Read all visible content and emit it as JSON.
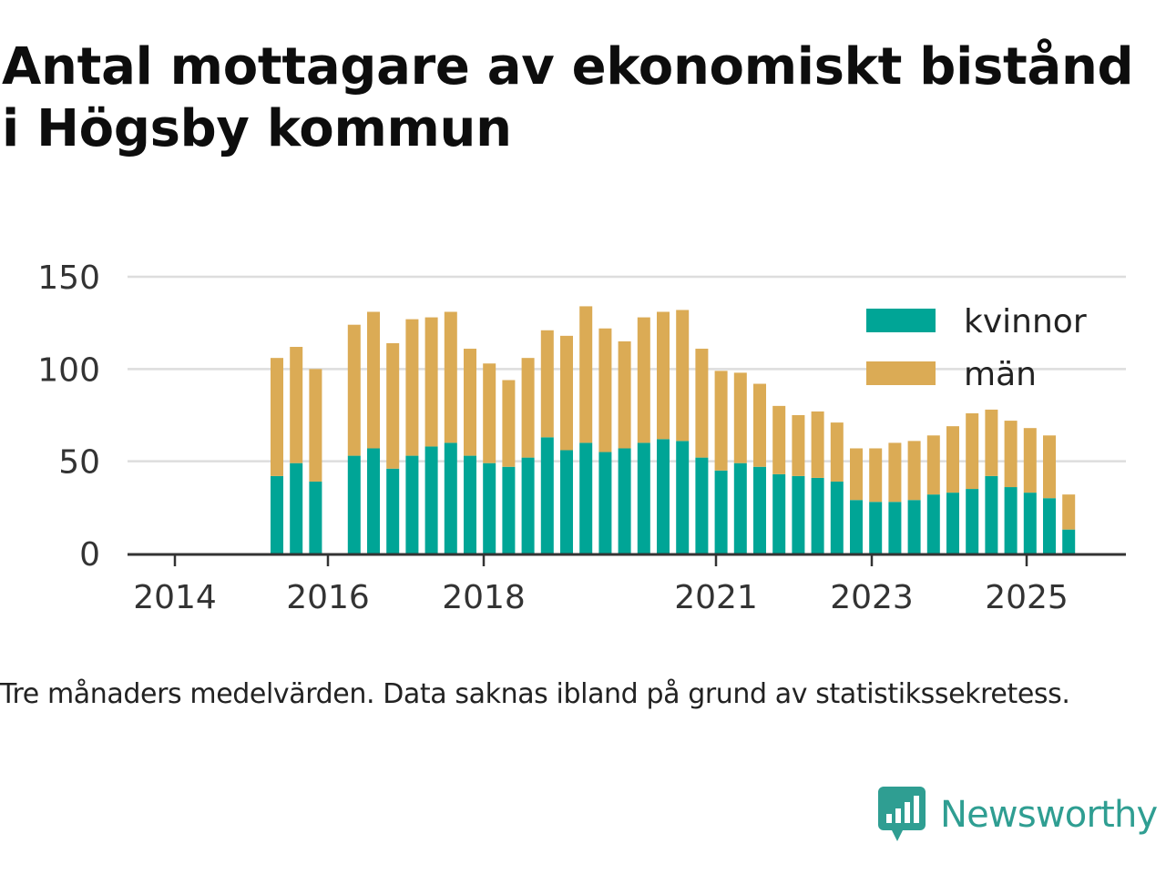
{
  "title": "Antal mottagare av ekonomiskt bistånd i Högsby kommun",
  "caption": "Tre månaders medelvärden. Data saknas ibland på grund av statistikssekretess.",
  "brand": {
    "name": "Newsworthy",
    "icon": "newsworthy-logo-icon",
    "color": "#2f9e92"
  },
  "chart_data": {
    "type": "bar",
    "stacked": true,
    "x_tick_labels": [
      "2014",
      "2016",
      "2018",
      "2021",
      "2023",
      "2025"
    ],
    "y_tick_labels": [
      "0",
      "50",
      "100",
      "150"
    ],
    "ylim": [
      0,
      150
    ],
    "grid": true,
    "legend_position": "top-right",
    "series": [
      {
        "name": "kvinnor",
        "color": "#00a596",
        "values": [
          42,
          49,
          39,
          53,
          57,
          46,
          53,
          58,
          60,
          53,
          49,
          47,
          52,
          63,
          56,
          60,
          55,
          57,
          60,
          62,
          61,
          52,
          45,
          49,
          47,
          43,
          42,
          41,
          39,
          29,
          28,
          28,
          29,
          32,
          33,
          35,
          42,
          36,
          33,
          30,
          13
        ]
      },
      {
        "name": "män",
        "color": "#dbab55",
        "values": [
          64,
          63,
          61,
          71,
          74,
          68,
          74,
          70,
          71,
          58,
          54,
          47,
          54,
          58,
          62,
          74,
          67,
          58,
          68,
          69,
          71,
          59,
          54,
          49,
          45,
          37,
          33,
          36,
          32,
          28,
          29,
          32,
          32,
          32,
          36,
          41,
          36,
          36,
          35,
          34,
          19
        ]
      }
    ]
  }
}
